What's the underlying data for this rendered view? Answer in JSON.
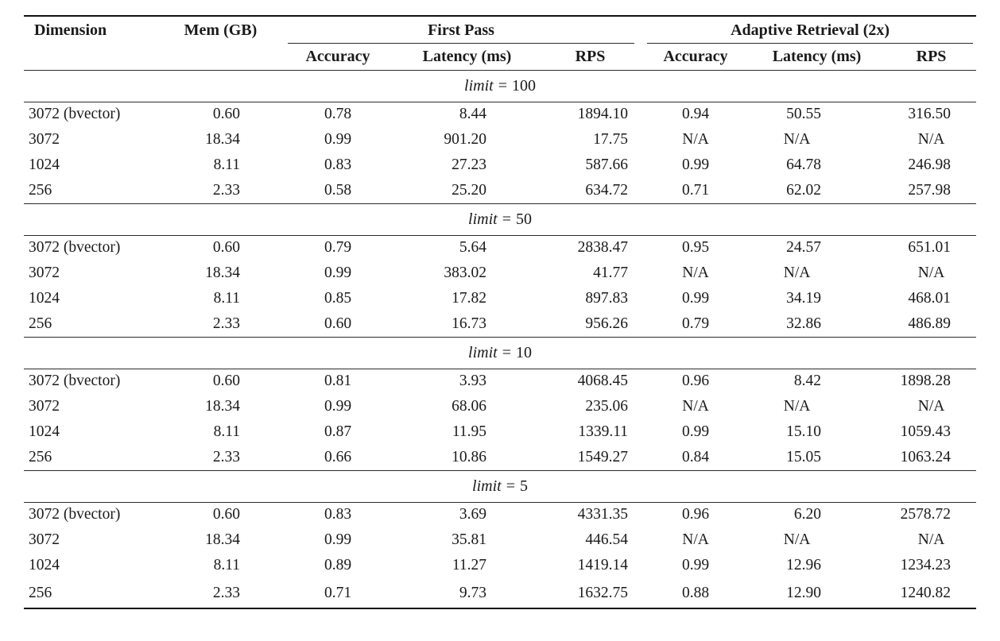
{
  "table": {
    "columns": {
      "dimension": "Dimension",
      "mem": "Mem (GB)",
      "group_first_pass": "First Pass",
      "group_adaptive": "Adaptive Retrieval (2x)",
      "sub": [
        "Accuracy",
        "Latency (ms)",
        "RPS",
        "Accuracy",
        "Latency (ms)",
        "RPS"
      ]
    },
    "sections": [
      {
        "var": "limit",
        "eq": "=",
        "value": "100",
        "rows": [
          [
            "3072 (bvector)",
            "0.60",
            "0.78",
            "8.44",
            "1894.10",
            "0.94",
            "50.55",
            "316.50"
          ],
          [
            "3072",
            "18.34",
            "0.99",
            "901.20",
            "17.75",
            "N/A",
            "N/A",
            "N/A"
          ],
          [
            "1024",
            "8.11",
            "0.83",
            "27.23",
            "587.66",
            "0.99",
            "64.78",
            "246.98"
          ],
          [
            "256",
            "2.33",
            "0.58",
            "25.20",
            "634.72",
            "0.71",
            "62.02",
            "257.98"
          ]
        ]
      },
      {
        "var": "limit",
        "eq": "=",
        "value": "50",
        "rows": [
          [
            "3072 (bvector)",
            "0.60",
            "0.79",
            "5.64",
            "2838.47",
            "0.95",
            "24.57",
            "651.01"
          ],
          [
            "3072",
            "18.34",
            "0.99",
            "383.02",
            "41.77",
            "N/A",
            "N/A",
            "N/A"
          ],
          [
            "1024",
            "8.11",
            "0.85",
            "17.82",
            "897.83",
            "0.99",
            "34.19",
            "468.01"
          ],
          [
            "256",
            "2.33",
            "0.60",
            "16.73",
            "956.26",
            "0.79",
            "32.86",
            "486.89"
          ]
        ]
      },
      {
        "var": "limit",
        "eq": "=",
        "value": "10",
        "rows": [
          [
            "3072 (bvector)",
            "0.60",
            "0.81",
            "3.93",
            "4068.45",
            "0.96",
            "8.42",
            "1898.28"
          ],
          [
            "3072",
            "18.34",
            "0.99",
            "68.06",
            "235.06",
            "N/A",
            "N/A",
            "N/A"
          ],
          [
            "1024",
            "8.11",
            "0.87",
            "11.95",
            "1339.11",
            "0.99",
            "15.10",
            "1059.43"
          ],
          [
            "256",
            "2.33",
            "0.66",
            "10.86",
            "1549.27",
            "0.84",
            "15.05",
            "1063.24"
          ]
        ]
      },
      {
        "var": "limit",
        "eq": "=",
        "value": "5",
        "rows": [
          [
            "3072 (bvector)",
            "0.60",
            "0.83",
            "3.69",
            "4331.35",
            "0.96",
            "6.20",
            "2578.72"
          ],
          [
            "3072",
            "18.34",
            "0.99",
            "35.81",
            "446.54",
            "N/A",
            "N/A",
            "N/A"
          ],
          [
            "1024",
            "8.11",
            "0.89",
            "11.27",
            "1419.14",
            "0.99",
            "12.96",
            "1234.23"
          ],
          [
            "256",
            "2.33",
            "0.71",
            "9.73",
            "1632.75",
            "0.88",
            "12.90",
            "1240.82"
          ]
        ]
      }
    ]
  }
}
